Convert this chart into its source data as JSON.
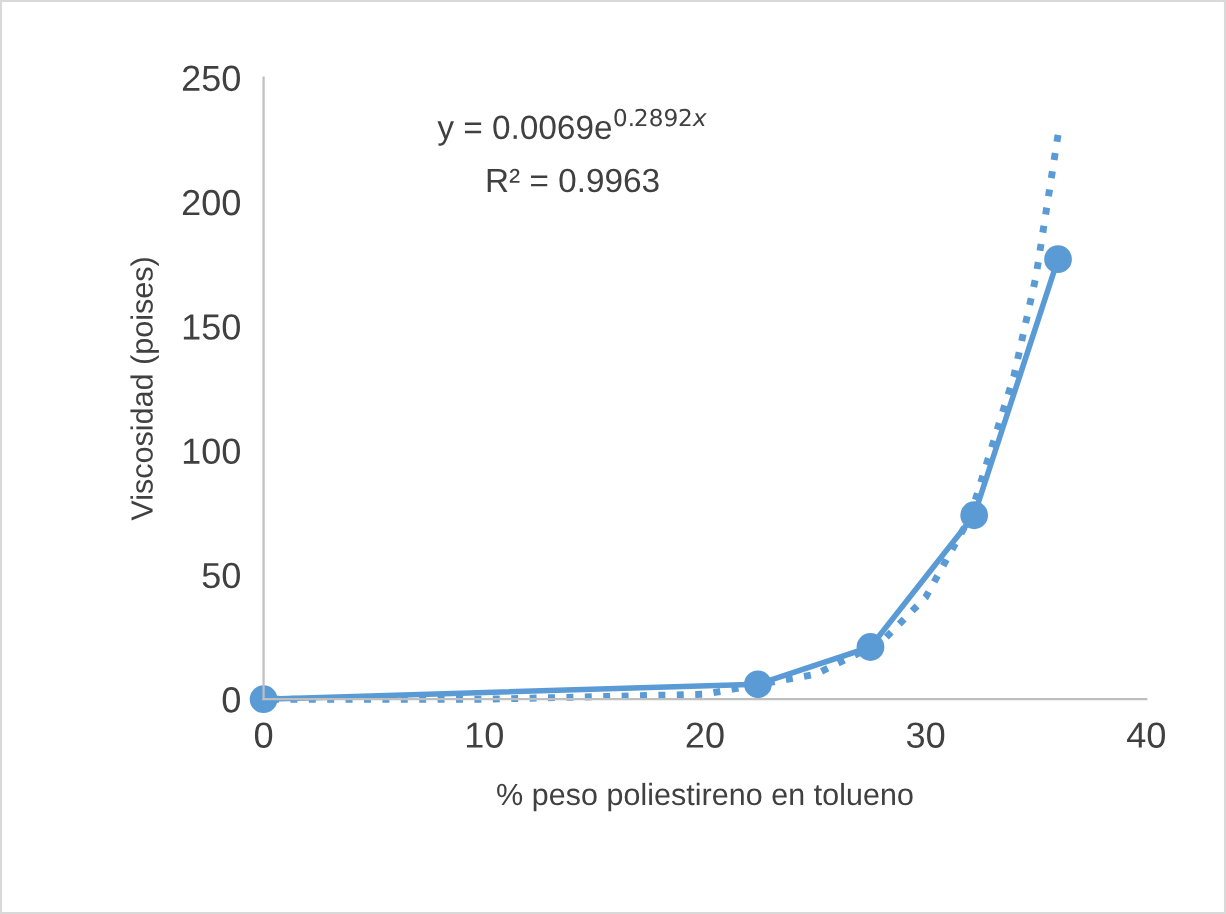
{
  "chart_data": {
    "type": "line",
    "xlabel": "% peso poliestireno en tolueno",
    "ylabel": "Viscosidad (poises)",
    "annotations": [
      "y = 0.0069e$^{0.2892x}$",
      "R² = 0.9963"
    ],
    "xlim": [
      0,
      40
    ],
    "xticks": [
      0,
      10,
      20,
      30,
      40
    ],
    "ylim": [
      0,
      250
    ],
    "yticks": [
      0,
      50,
      100,
      150,
      200,
      250
    ],
    "grid": false,
    "legend": false,
    "series": [
      {
        "color": "#5b9bd5",
        "marker": "circle",
        "line_style": "solid",
        "x": [
          0,
          22.4,
          27.5,
          32.2,
          36
        ],
        "values": [
          0,
          6,
          21,
          74,
          177
        ]
      },
      {
        "color": "#5b9bd5",
        "marker": "none",
        "line_style": "dotted",
        "x": [
          0,
          10,
          20,
          25,
          28,
          30,
          32,
          34,
          35,
          36
        ],
        "values": [
          0,
          0,
          2,
          10,
          23,
          41,
          73,
          130,
          170,
          227
        ]
      }
    ]
  }
}
